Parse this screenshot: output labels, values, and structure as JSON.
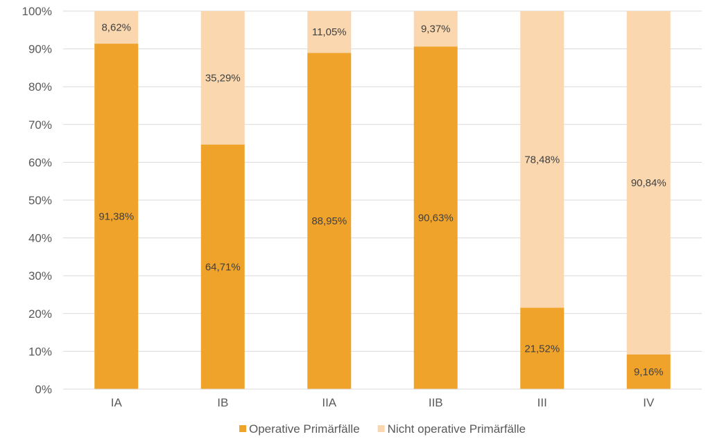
{
  "chart_data": {
    "type": "bar",
    "stacked": true,
    "percent_stacked": true,
    "categories": [
      "IA",
      "IB",
      "IIA",
      "IIB",
      "III",
      "IV"
    ],
    "series": [
      {
        "name": "Operative Primärfälle",
        "color": "#F0A32A",
        "values": [
          91.38,
          64.71,
          88.95,
          90.63,
          21.52,
          9.16
        ],
        "labels": [
          "91,38%",
          "64,71%",
          "88,95%",
          "90,63%",
          "21,52%",
          "9,16%"
        ]
      },
      {
        "name": "Nicht operative Primärfälle",
        "color": "#FAD7AE",
        "values": [
          8.62,
          35.29,
          11.05,
          9.37,
          78.48,
          90.84
        ],
        "labels": [
          "8,62%",
          "35,29%",
          "11,05%",
          "9,37%",
          "78,48%",
          "90,84%"
        ]
      }
    ],
    "y_ticks": [
      "0%",
      "10%",
      "20%",
      "30%",
      "40%",
      "50%",
      "60%",
      "70%",
      "80%",
      "90%",
      "100%"
    ],
    "ylim": [
      0,
      100
    ],
    "grid": true,
    "legend_position": "bottom",
    "title": "",
    "xlabel": "",
    "ylabel": ""
  }
}
